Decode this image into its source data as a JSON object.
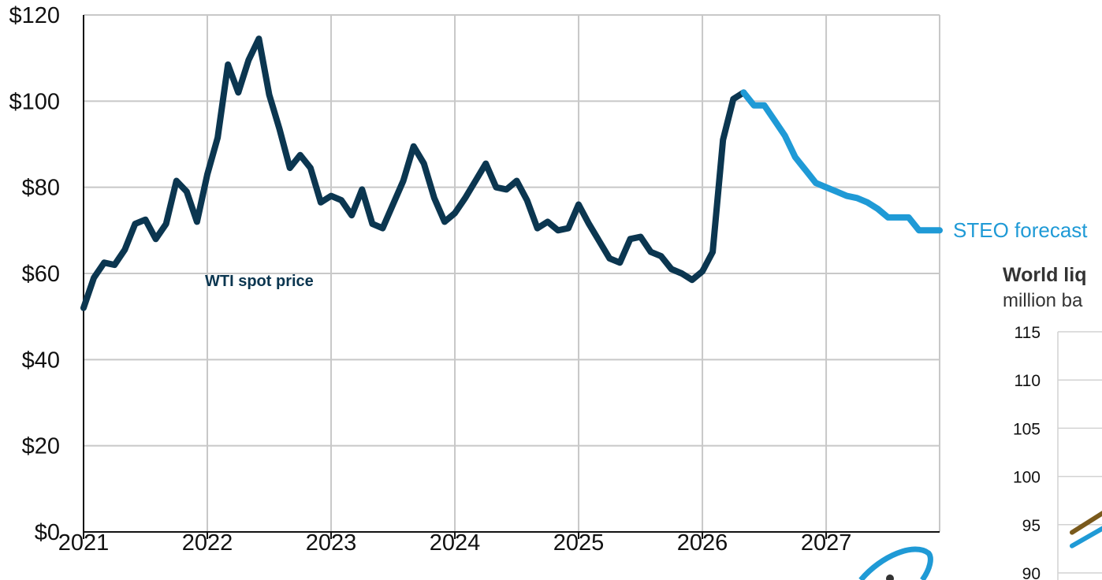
{
  "chart_data": [
    {
      "type": "line",
      "title": "",
      "xlabel": "",
      "ylabel": "",
      "ylim": [
        0,
        120
      ],
      "xlim": [
        "2021-01",
        "2027-12"
      ],
      "grid": true,
      "y_ticks": [
        "$0",
        "$20",
        "$40",
        "$60",
        "$80",
        "$100",
        "$120"
      ],
      "x_ticks": [
        "2021",
        "2022",
        "2023",
        "2024",
        "2025",
        "2026",
        "2027"
      ],
      "annotations": [
        "WTI spot price",
        "STEO forecast"
      ],
      "colors": {
        "history": "#0b3650",
        "forecast": "#1f9ad6",
        "grid": "#c8c8c8"
      },
      "series": [
        {
          "name": "WTI spot price",
          "x": [
            "2021-01",
            "2021-02",
            "2021-03",
            "2021-04",
            "2021-05",
            "2021-06",
            "2021-07",
            "2021-08",
            "2021-09",
            "2021-10",
            "2021-11",
            "2021-12",
            "2022-01",
            "2022-02",
            "2022-03",
            "2022-04",
            "2022-05",
            "2022-06",
            "2022-07",
            "2022-08",
            "2022-09",
            "2022-10",
            "2022-11",
            "2022-12",
            "2023-01",
            "2023-02",
            "2023-03",
            "2023-04",
            "2023-05",
            "2023-06",
            "2023-07",
            "2023-08",
            "2023-09",
            "2023-10",
            "2023-11",
            "2023-12",
            "2024-01",
            "2024-02",
            "2024-03",
            "2024-04",
            "2024-05",
            "2024-06",
            "2024-07",
            "2024-08",
            "2024-09",
            "2024-10",
            "2024-11",
            "2024-12",
            "2025-01",
            "2025-02",
            "2025-03",
            "2025-04",
            "2025-05",
            "2025-06",
            "2025-07",
            "2025-08",
            "2025-09",
            "2025-10",
            "2025-11",
            "2025-12",
            "2026-01",
            "2026-02",
            "2026-03",
            "2026-04",
            "2026-05"
          ],
          "values": [
            52,
            59,
            62.5,
            62,
            65.5,
            71.5,
            72.5,
            68,
            71.5,
            81.5,
            79,
            72,
            83,
            91.5,
            108.5,
            102,
            109.5,
            114.5,
            101.5,
            93.5,
            84.5,
            87.5,
            84.5,
            76.5,
            78,
            77,
            73.5,
            79.5,
            71.5,
            70.5,
            76,
            81.5,
            89.5,
            85.5,
            77.5,
            72,
            74,
            77.5,
            81.5,
            85.5,
            80,
            79.5,
            81.5,
            77,
            70.5,
            72,
            70,
            70.5,
            76,
            71.5,
            67.5,
            63.5,
            62.5,
            68,
            68.5,
            65,
            64,
            61,
            60,
            58.5,
            60.5,
            65,
            91,
            100.5,
            102
          ]
        },
        {
          "name": "STEO forecast",
          "x": [
            "2026-05",
            "2026-06",
            "2026-07",
            "2026-08",
            "2026-09",
            "2026-10",
            "2026-11",
            "2026-12",
            "2027-01",
            "2027-02",
            "2027-03",
            "2027-04",
            "2027-05",
            "2027-06",
            "2027-07",
            "2027-08",
            "2027-09",
            "2027-10",
            "2027-11",
            "2027-12"
          ],
          "values": [
            102,
            99,
            99,
            95.5,
            92,
            87,
            84,
            81,
            80,
            79,
            78,
            77.5,
            76.5,
            75,
            73,
            73,
            73,
            70,
            70,
            70
          ]
        }
      ]
    },
    {
      "type": "line",
      "title": "World liq",
      "subtitle": "million ba",
      "y_ticks": [
        "90",
        "95",
        "100",
        "105",
        "110",
        "115"
      ],
      "ylim": [
        90,
        115
      ],
      "colors": {
        "s1": "#7a5a1c",
        "s2": "#1f9ad6"
      },
      "series": [
        {
          "x": [
            0,
            1
          ],
          "values": [
            94.2,
            97.5
          ]
        },
        {
          "x": [
            0,
            1
          ],
          "values": [
            92.8,
            95.8
          ]
        }
      ]
    }
  ]
}
